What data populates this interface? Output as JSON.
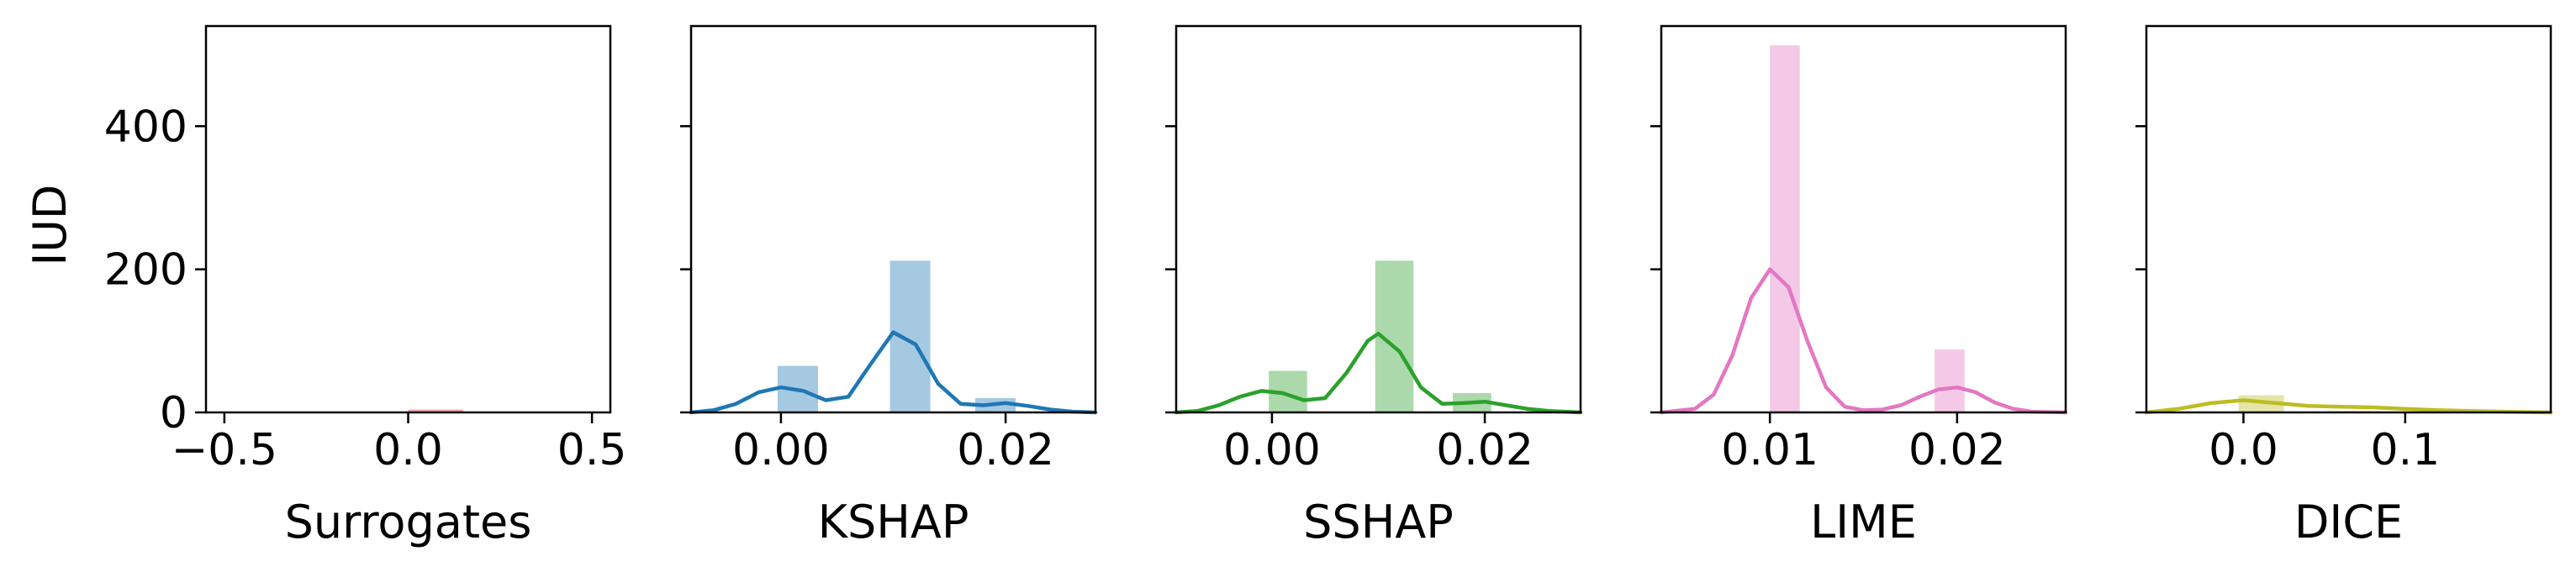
{
  "ylabel": "IUD",
  "ylim": [
    0,
    540
  ],
  "yticks": [
    0,
    200,
    400
  ],
  "chart_data": [
    {
      "type": "bar",
      "xlabel": "Surrogates",
      "color": "#d62728",
      "xlim": [
        -0.55,
        0.55
      ],
      "xticks": [
        {
          "v": -0.5,
          "label": "−0.5"
        },
        {
          "v": 0.0,
          "label": "0.0"
        },
        {
          "v": 0.5,
          "label": "0.5"
        }
      ],
      "bars": [
        {
          "x0": 0.0,
          "x1": 0.15,
          "value": 4
        }
      ],
      "kde": []
    },
    {
      "type": "bar",
      "xlabel": "KSHAP",
      "color": "#1f77b4",
      "xlim": [
        -0.008,
        0.028
      ],
      "xticks": [
        {
          "v": 0.0,
          "label": "0.00"
        },
        {
          "v": 0.02,
          "label": "0.02"
        }
      ],
      "bars": [
        {
          "x0": -0.0003,
          "x1": 0.0033,
          "value": 65
        },
        {
          "x0": 0.0097,
          "x1": 0.0133,
          "value": 212
        },
        {
          "x0": 0.0173,
          "x1": 0.0209,
          "value": 20
        }
      ],
      "kde": [
        [
          -0.008,
          0
        ],
        [
          -0.006,
          3
        ],
        [
          -0.004,
          12
        ],
        [
          -0.002,
          28
        ],
        [
          0.0,
          35
        ],
        [
          0.002,
          30
        ],
        [
          0.004,
          17
        ],
        [
          0.006,
          22
        ],
        [
          0.008,
          68
        ],
        [
          0.01,
          112
        ],
        [
          0.012,
          95
        ],
        [
          0.014,
          40
        ],
        [
          0.016,
          12
        ],
        [
          0.018,
          10
        ],
        [
          0.02,
          13
        ],
        [
          0.022,
          9
        ],
        [
          0.024,
          4
        ],
        [
          0.026,
          1
        ],
        [
          0.028,
          0
        ]
      ]
    },
    {
      "type": "bar",
      "xlabel": "SSHAP",
      "color": "#2ca02c",
      "xlim": [
        -0.009,
        0.029
      ],
      "xticks": [
        {
          "v": 0.0,
          "label": "0.00"
        },
        {
          "v": 0.02,
          "label": "0.02"
        }
      ],
      "bars": [
        {
          "x0": -0.0003,
          "x1": 0.0033,
          "value": 58
        },
        {
          "x0": 0.0097,
          "x1": 0.0133,
          "value": 212
        },
        {
          "x0": 0.017,
          "x1": 0.0206,
          "value": 27
        }
      ],
      "kde": [
        [
          -0.009,
          0
        ],
        [
          -0.007,
          2
        ],
        [
          -0.005,
          10
        ],
        [
          -0.003,
          22
        ],
        [
          -0.001,
          30
        ],
        [
          0.001,
          27
        ],
        [
          0.003,
          17
        ],
        [
          0.005,
          20
        ],
        [
          0.007,
          55
        ],
        [
          0.009,
          100
        ],
        [
          0.01,
          110
        ],
        [
          0.012,
          85
        ],
        [
          0.014,
          35
        ],
        [
          0.016,
          12
        ],
        [
          0.018,
          13
        ],
        [
          0.02,
          15
        ],
        [
          0.022,
          10
        ],
        [
          0.024,
          5
        ],
        [
          0.026,
          2
        ],
        [
          0.029,
          0
        ]
      ]
    },
    {
      "type": "bar",
      "xlabel": "LIME",
      "color": "#e377c2",
      "xlim": [
        0.0042,
        0.0258
      ],
      "xticks": [
        {
          "v": 0.01,
          "label": "0.01"
        },
        {
          "v": 0.02,
          "label": "0.02"
        }
      ],
      "bars": [
        {
          "x0": 0.01,
          "x1": 0.0116,
          "value": 513
        },
        {
          "x0": 0.0188,
          "x1": 0.0204,
          "value": 88
        }
      ],
      "kde": [
        [
          0.0042,
          0
        ],
        [
          0.006,
          5
        ],
        [
          0.007,
          25
        ],
        [
          0.008,
          80
        ],
        [
          0.009,
          160
        ],
        [
          0.01,
          200
        ],
        [
          0.011,
          175
        ],
        [
          0.012,
          100
        ],
        [
          0.013,
          35
        ],
        [
          0.014,
          8
        ],
        [
          0.015,
          3
        ],
        [
          0.016,
          4
        ],
        [
          0.017,
          10
        ],
        [
          0.018,
          22
        ],
        [
          0.019,
          32
        ],
        [
          0.02,
          35
        ],
        [
          0.021,
          28
        ],
        [
          0.022,
          14
        ],
        [
          0.023,
          5
        ],
        [
          0.024,
          1
        ],
        [
          0.0258,
          0
        ]
      ]
    },
    {
      "type": "bar",
      "xlabel": "DICE",
      "color": "#bcbd22",
      "xlim": [
        -0.06,
        0.19
      ],
      "xticks": [
        {
          "v": 0.0,
          "label": "0.0"
        },
        {
          "v": 0.1,
          "label": "0.1"
        }
      ],
      "bars": [
        {
          "x0": -0.003,
          "x1": 0.025,
          "value": 24
        },
        {
          "x0": 0.052,
          "x1": 0.08,
          "value": 2
        }
      ],
      "kde": [
        [
          -0.06,
          0
        ],
        [
          -0.04,
          5
        ],
        [
          -0.02,
          13
        ],
        [
          0.0,
          17
        ],
        [
          0.02,
          13
        ],
        [
          0.04,
          9
        ],
        [
          0.06,
          8
        ],
        [
          0.08,
          7
        ],
        [
          0.1,
          5
        ],
        [
          0.12,
          3
        ],
        [
          0.14,
          2
        ],
        [
          0.16,
          1
        ],
        [
          0.19,
          0
        ]
      ]
    }
  ]
}
